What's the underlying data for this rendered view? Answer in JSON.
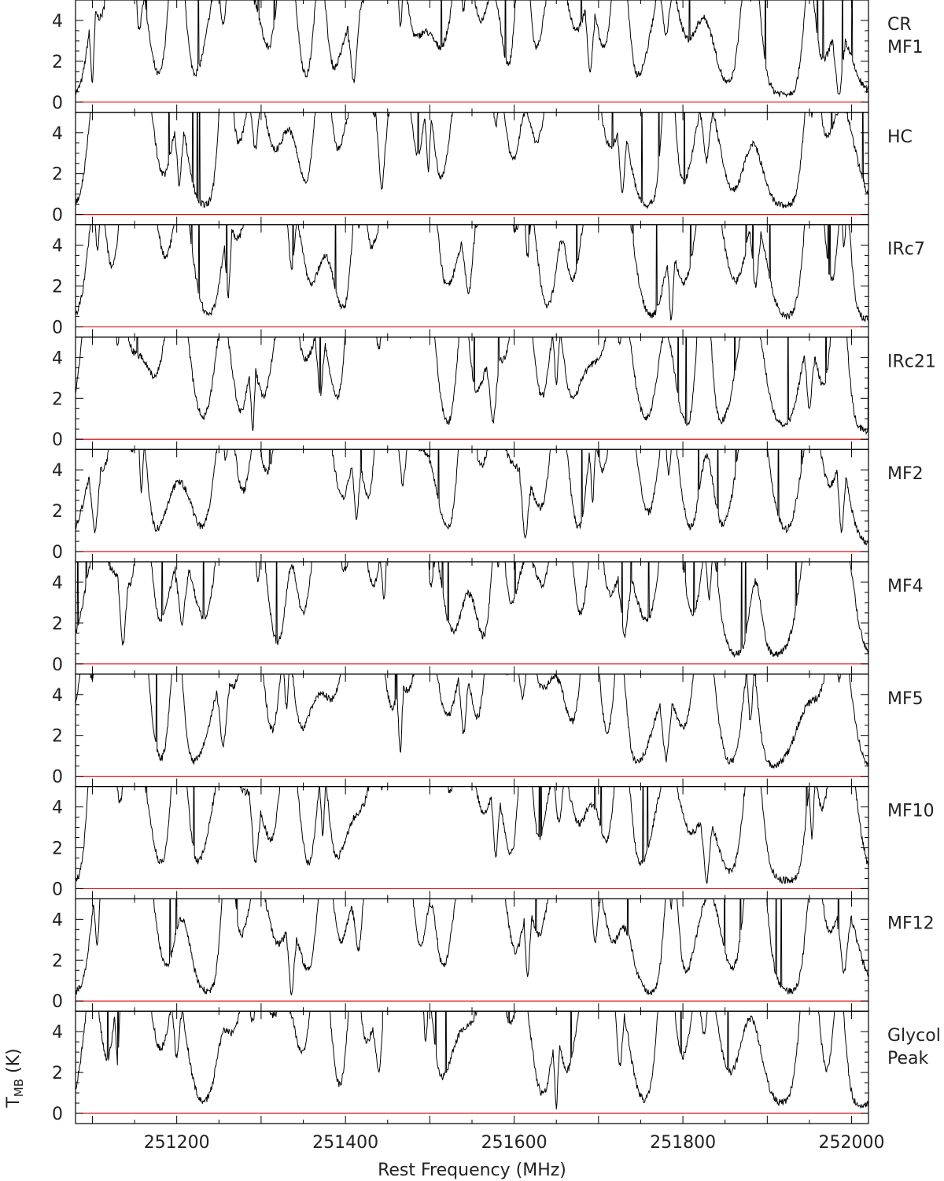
{
  "chart_data": {
    "type": "line",
    "xlabel": "Rest Frequency (MHz)",
    "ylabel": "T_MB (K)",
    "xlim": [
      251080,
      252020
    ],
    "ylim": [
      -0.5,
      5.0
    ],
    "x_ticks": [
      251200,
      251400,
      251600,
      251800,
      252000
    ],
    "y_ticks": [
      0,
      2,
      4
    ],
    "grid": false,
    "baseline_value": 0,
    "colors": {
      "spectrum": "#000000",
      "baseline": "#e01010"
    },
    "panels": [
      {
        "label_lines": [
          "CR",
          "MF1"
        ]
      },
      {
        "label_lines": [
          "HC"
        ]
      },
      {
        "label_lines": [
          "IRc7"
        ]
      },
      {
        "label_lines": [
          "IRc21"
        ]
      },
      {
        "label_lines": [
          "MF2"
        ]
      },
      {
        "label_lines": [
          "MF4"
        ]
      },
      {
        "label_lines": [
          "MF5"
        ]
      },
      {
        "label_lines": [
          "MF10"
        ]
      },
      {
        "label_lines": [
          "MF12"
        ]
      },
      {
        "label_lines": [
          "Glycol",
          "Peak"
        ]
      }
    ],
    "peak_frequencies": [
      251100,
      251130,
      251155,
      251200,
      251255,
      251290,
      251330,
      251370,
      251410,
      251440,
      251465,
      251495,
      251540,
      251575,
      251610,
      251650,
      251690,
      251725,
      251780,
      251825,
      251880,
      251950,
      251985
    ]
  }
}
